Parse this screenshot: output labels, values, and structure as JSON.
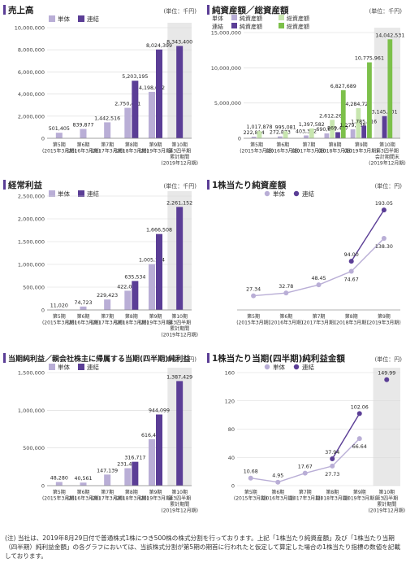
{
  "colors": {
    "single": "#b9aed6",
    "consolidated": "#5b3e96",
    "net_assets_single": "#c8e6b0",
    "total_assets_consolidated": "#7cc04a",
    "header_bar": "#5b3e96",
    "shade": "#e8e8e8",
    "grid": "#d8d8d8"
  },
  "charts": [
    {
      "id": "sales",
      "title": "売上高",
      "unit": "(単位：千円)",
      "legend": [
        "単体",
        "連結"
      ],
      "chart_data": {
        "type": "bar",
        "categories": [
          [
            "第5期",
            "(2015年3月期)"
          ],
          [
            "第6期",
            "(2016年3月期)"
          ],
          [
            "第7期",
            "(2017年3月期)"
          ],
          [
            "第8期",
            "(2018年3月期)"
          ],
          [
            "第9期",
            "(2019年3月期)"
          ],
          [
            "第10期",
            "第3四半期",
            "累計期間",
            "(2019年12月期)"
          ]
        ],
        "series": [
          {
            "name": "単体",
            "values": [
              501405,
              839877,
              1442516,
              2750401,
              4198652,
              null
            ]
          },
          {
            "name": "連結",
            "values": [
              null,
              null,
              null,
              5203195,
              8024399,
              8343400
            ]
          }
        ],
        "labels": [
          [
            "501,405",
            null
          ],
          [
            "839,877",
            null
          ],
          [
            "1,442,516",
            null
          ],
          [
            "2,750,401",
            "5,203,195"
          ],
          [
            "4,198,652",
            "8,024,399"
          ],
          [
            null,
            "8,343,400"
          ]
        ],
        "ylim": [
          0,
          10000000
        ],
        "yticks": [
          "0",
          "2,000,000",
          "4,000,000",
          "6,000,000",
          "8,000,000",
          "10,000,000"
        ],
        "shade_last": true
      }
    },
    {
      "id": "assets",
      "title": "純資産額／総資産額",
      "unit": "(単位：千円)",
      "legend_grid": [
        [
          "単体",
          "純資産額",
          "総資産額"
        ],
        [
          "連結",
          "純資産額",
          "総資産額"
        ]
      ],
      "chart_data": {
        "type": "bar",
        "categories": [
          [
            "第5期",
            "(2015年3月期)"
          ],
          [
            "第6期",
            "(2016年3月期)"
          ],
          [
            "第7期",
            "(2017年3月期)"
          ],
          [
            "第8期",
            "(2018年3月期)"
          ],
          [
            "第9期",
            "(2019年3月期)"
          ],
          [
            "第10期",
            "第3四半期",
            "会計期間末",
            "(2019年12月期)"
          ]
        ],
        "series": [
          {
            "name": "単体 純資産額",
            "values": [
              222814,
              272873,
              403372,
              690617,
              1279238,
              null
            ]
          },
          {
            "name": "単体 総資産額",
            "values": [
              1017878,
              995081,
              1397582,
              2612260,
              4284725,
              null
            ]
          },
          {
            "name": "連結 純資産額",
            "values": [
              null,
              null,
              null,
              869477,
              1785716,
              3145601
            ]
          },
          {
            "name": "連結 総資産額",
            "values": [
              null,
              null,
              null,
              6827689,
              10775961,
              14042531
            ]
          }
        ],
        "labels": [
          [
            "222,814",
            "1,017,878",
            null,
            null
          ],
          [
            "272,873",
            "995,081",
            null,
            null
          ],
          [
            "403,372",
            "1,397,582",
            null,
            null
          ],
          [
            "690,617",
            "2,612,260",
            "869,477",
            "6,827,689"
          ],
          [
            "1,279,238",
            "4,284,725",
            "1,785,716",
            "10,775,961"
          ],
          [
            null,
            null,
            "3,145,601",
            "14,042,531"
          ]
        ],
        "ylim": [
          0,
          15000000
        ],
        "yticks": [
          "0",
          "5,000,000",
          "10,000,000",
          "15,000,000"
        ],
        "shade_last": true
      }
    },
    {
      "id": "ordinary",
      "title": "経常利益",
      "unit": "(単位：千円)",
      "legend": [
        "単体",
        "連結"
      ],
      "chart_data": {
        "type": "bar",
        "categories": [
          [
            "第5期",
            "(2015年3月期)"
          ],
          [
            "第6期",
            "(2016年3月期)"
          ],
          [
            "第7期",
            "(2017年3月期)"
          ],
          [
            "第8期",
            "(2018年3月期)"
          ],
          [
            "第9期",
            "(2019年3月期)"
          ],
          [
            "第10期",
            "第3四半期",
            "累計期間",
            "(2019年12月期)"
          ]
        ],
        "series": [
          {
            "name": "単体",
            "values": [
              11020,
              74723,
              229423,
              422049,
              1005144,
              null
            ]
          },
          {
            "name": "連結",
            "values": [
              null,
              null,
              null,
              635534,
              1666508,
              2261152
            ]
          }
        ],
        "labels": [
          [
            "11,020",
            null
          ],
          [
            "74,723",
            null
          ],
          [
            "229,423",
            null
          ],
          [
            "422,049",
            "635,534"
          ],
          [
            "1,005,144",
            "1,666,508"
          ],
          [
            null,
            "2,261,152"
          ]
        ],
        "ylim": [
          0,
          2500000
        ],
        "yticks": [
          "0",
          "500,000",
          "1,000,000",
          "1,500,000",
          "2,000,000",
          "2,500,000"
        ],
        "shade_last": true
      }
    },
    {
      "id": "bps",
      "title": "1株当たり純資産額",
      "unit": "(単位：円)",
      "legend": [
        "単体",
        "連結"
      ],
      "chart_data": {
        "type": "line",
        "categories": [
          [
            "第5期",
            "(2015年3月期)"
          ],
          [
            "第6期",
            "(2016年3月期)"
          ],
          [
            "第7期",
            "(2017年3月期)"
          ],
          [
            "第8期",
            "(2018年3月期)"
          ],
          [
            "第9期",
            "(2019年3月期)"
          ]
        ],
        "series": [
          {
            "name": "単体",
            "values": [
              27.34,
              32.78,
              48.45,
              74.67,
              138.3
            ]
          },
          {
            "name": "連結",
            "values": [
              null,
              null,
              null,
              94.0,
              193.05
            ]
          }
        ],
        "labels": [
          [
            "27.34",
            null
          ],
          [
            "32.78",
            null
          ],
          [
            "48.45",
            null
          ],
          [
            "74.67",
            "94.00"
          ],
          [
            "138.30",
            "193.05"
          ]
        ],
        "ylim": [
          0,
          220
        ],
        "yticks": [],
        "shade_last": false
      }
    },
    {
      "id": "netincome",
      "title": "当期純利益／親会社株主に帰属する当期(四半期)純利益",
      "unit": "(単位：千円)",
      "legend": [
        "単体",
        "連結"
      ],
      "chart_data": {
        "type": "bar",
        "categories": [
          [
            "第5期",
            "(2015年3月期)"
          ],
          [
            "第6期",
            "(2016年3月期)"
          ],
          [
            "第7期",
            "(2017年3月期)"
          ],
          [
            "第8期",
            "(2018年3月期)"
          ],
          [
            "第9期",
            "(2019年3月期)"
          ],
          [
            "第10期",
            "第3四半期",
            "累計期間",
            "(2019年12月期)"
          ]
        ],
        "series": [
          {
            "name": "単体",
            "values": [
              48280,
              40561,
              147139,
              231482,
              616442,
              null
            ]
          },
          {
            "name": "連結",
            "values": [
              null,
              null,
              null,
              316717,
              944099,
              1387429
            ]
          }
        ],
        "labels": [
          [
            "48,280",
            null
          ],
          [
            "40,561",
            null
          ],
          [
            "147,139",
            null
          ],
          [
            "231,482",
            "316,717"
          ],
          [
            "616,442",
            "944,099"
          ],
          [
            null,
            "1,387,429"
          ]
        ],
        "ylim": [
          0,
          1500000
        ],
        "yticks": [
          "0",
          "500,000",
          "1,000,000",
          "1,500,000"
        ],
        "shade_last": true
      }
    },
    {
      "id": "eps",
      "title": "1株当たり当期(四半期)純利益金額",
      "unit": "(単位：円)",
      "legend": [
        "単体",
        "連結"
      ],
      "chart_data": {
        "type": "line",
        "categories": [
          [
            "第5期",
            "(2015年3月期)"
          ],
          [
            "第6期",
            "(2016年3月期)"
          ],
          [
            "第7期",
            "(2017年3月期)"
          ],
          [
            "第8期",
            "(2018年3月期)"
          ],
          [
            "第9期",
            "(2019年3月期)"
          ],
          [
            "第10期",
            "第3四半期",
            "累計期間",
            "(2019年12月期)"
          ]
        ],
        "series": [
          {
            "name": "単体",
            "values": [
              10.68,
              4.95,
              17.67,
              27.73,
              66.64,
              null
            ]
          },
          {
            "name": "連結",
            "values": [
              null,
              null,
              null,
              37.94,
              102.06,
              149.99
            ]
          }
        ],
        "labels": [
          [
            "10.68",
            null
          ],
          [
            "4.95",
            null
          ],
          [
            "17.67",
            null
          ],
          [
            "27.73",
            "37.94"
          ],
          [
            "66.64",
            "102.06"
          ],
          [
            null,
            "149.99"
          ]
        ],
        "ylim": [
          0,
          160
        ],
        "yticks": [
          "0",
          "40",
          "80",
          "120",
          "160"
        ],
        "shade_last": true
      }
    }
  ],
  "note": "(注) 当社は、2019年8月29日付で普通株式1株につき500株の株式分割を行っております。上記「1株当たり純資産額」及び「1株当たり当期（四半期）純利益金額」の各グラフにおいては、当該株式分割が第5期の期首に行われたと仮定して算定した場合の1株当たり指標の数値を記載しております。"
}
